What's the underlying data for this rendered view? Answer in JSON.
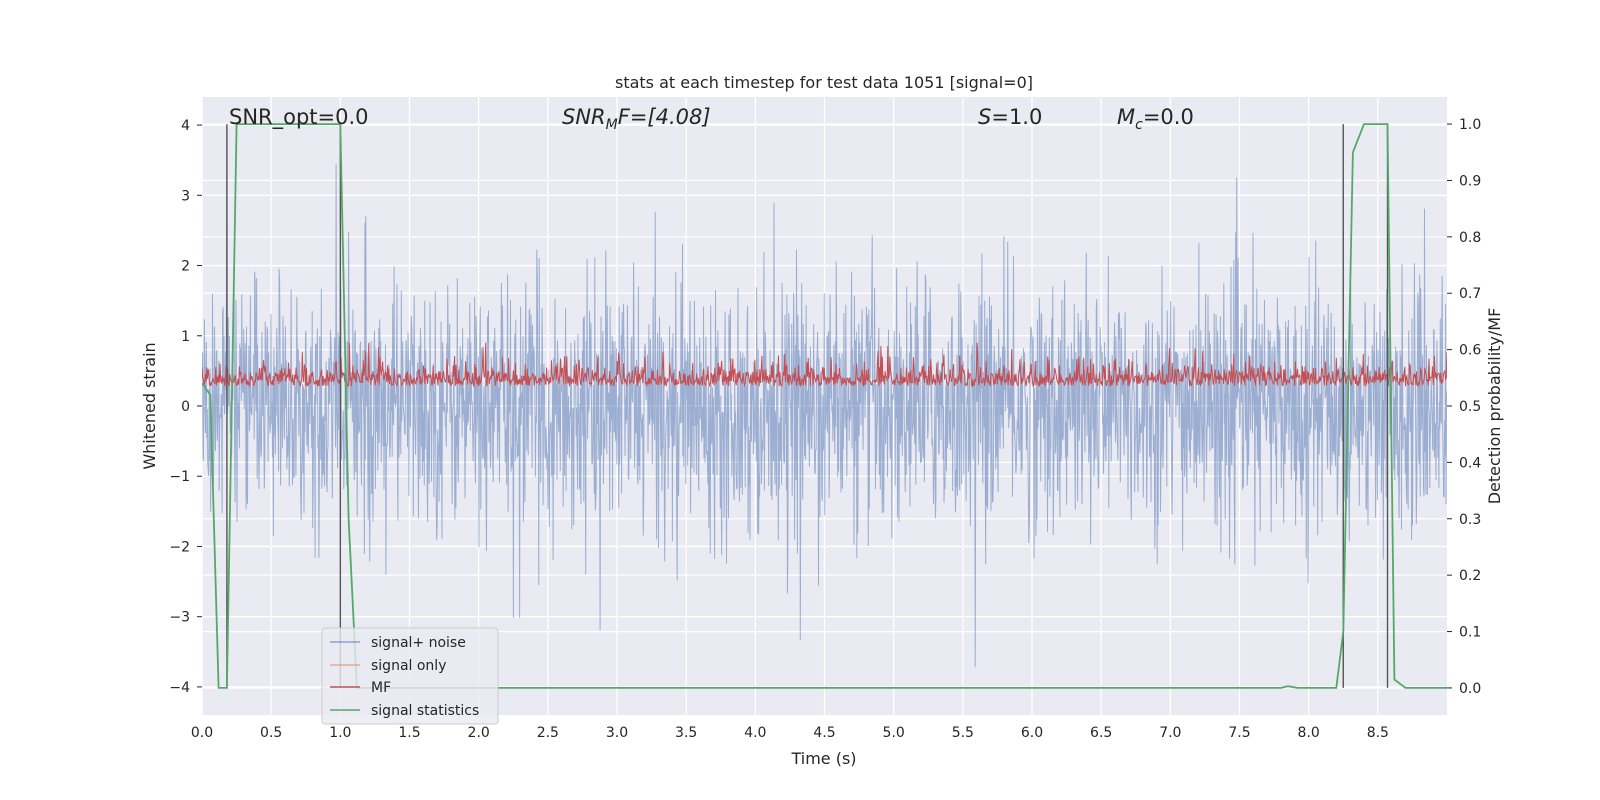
{
  "chart_data": {
    "type": "line",
    "title": "stats at each timestep for test data 1051 [signal=0]",
    "xlabel": "Time (s)",
    "ylabel": "Whitened strain",
    "y2label": "Detection probability/MF",
    "xlim": [
      0.0,
      9.0
    ],
    "ylim": [
      -4.4,
      4.4
    ],
    "y2lim": [
      -0.048,
      1.048
    ],
    "xticks": [
      "0.0",
      "0.5",
      "1.0",
      "1.5",
      "2.0",
      "2.5",
      "3.0",
      "3.5",
      "4.0",
      "4.5",
      "5.0",
      "5.5",
      "6.0",
      "6.5",
      "7.0",
      "7.5",
      "8.0",
      "8.5"
    ],
    "yticks": [
      "4",
      "3",
      "2",
      "1",
      "0",
      "−1",
      "−2",
      "−3",
      "−4"
    ],
    "y2ticks": [
      "1.0",
      "0.9",
      "0.8",
      "0.7",
      "0.6",
      "0.5",
      "0.4",
      "0.3",
      "0.2",
      "0.1",
      "0.0"
    ],
    "grid": true,
    "legend_location": "lower-left",
    "legend": [
      "signal+ noise",
      "signal only",
      "MF",
      "signal statistics"
    ],
    "annotations": {
      "snr_opt": "SNR_opt=0.0",
      "snr_mf_sym": "SNR",
      "snr_mf_sub": "M",
      "snr_mf_rest": "F=[4.08]",
      "s_sym": "S",
      "s_rest": "=1.0",
      "mc_sym": "M",
      "mc_sub": "c",
      "mc_rest": "=0.0"
    },
    "vlines": [
      0.18,
      1.0,
      8.25,
      8.57
    ],
    "series": [
      {
        "name": "signal+ noise",
        "axis": "left",
        "color": "#4c72b0",
        "description": "whitened noise, roughly ±1.5 with spikes to about ±4"
      },
      {
        "name": "signal only",
        "axis": "left",
        "color": "#dd8452",
        "values": []
      },
      {
        "name": "MF",
        "axis": "right",
        "color": "#c44e52",
        "description": "matched filter output between about 0.51 and 0.61"
      },
      {
        "name": "signal statistics",
        "axis": "right",
        "color": "#55a868",
        "x": [
          0.0,
          0.06,
          0.12,
          0.18,
          0.25,
          0.32,
          0.5,
          0.8,
          1.0,
          1.06,
          1.12,
          1.2,
          2.0,
          4.0,
          6.0,
          7.0,
          7.8,
          7.85,
          7.92,
          8.0,
          8.2,
          8.25,
          8.32,
          8.4,
          8.5,
          8.57,
          8.62,
          8.7,
          9.0
        ],
        "values": [
          0.54,
          0.52,
          0.0,
          0.0,
          1.0,
          1.0,
          1.0,
          1.0,
          1.0,
          0.3,
          0.0,
          0.0,
          0.0,
          0.0,
          0.0,
          0.0,
          0.0,
          0.003,
          0.0,
          0.0,
          0.0,
          0.1,
          0.95,
          1.0,
          1.0,
          1.0,
          0.015,
          0.0,
          0.0
        ]
      }
    ]
  }
}
